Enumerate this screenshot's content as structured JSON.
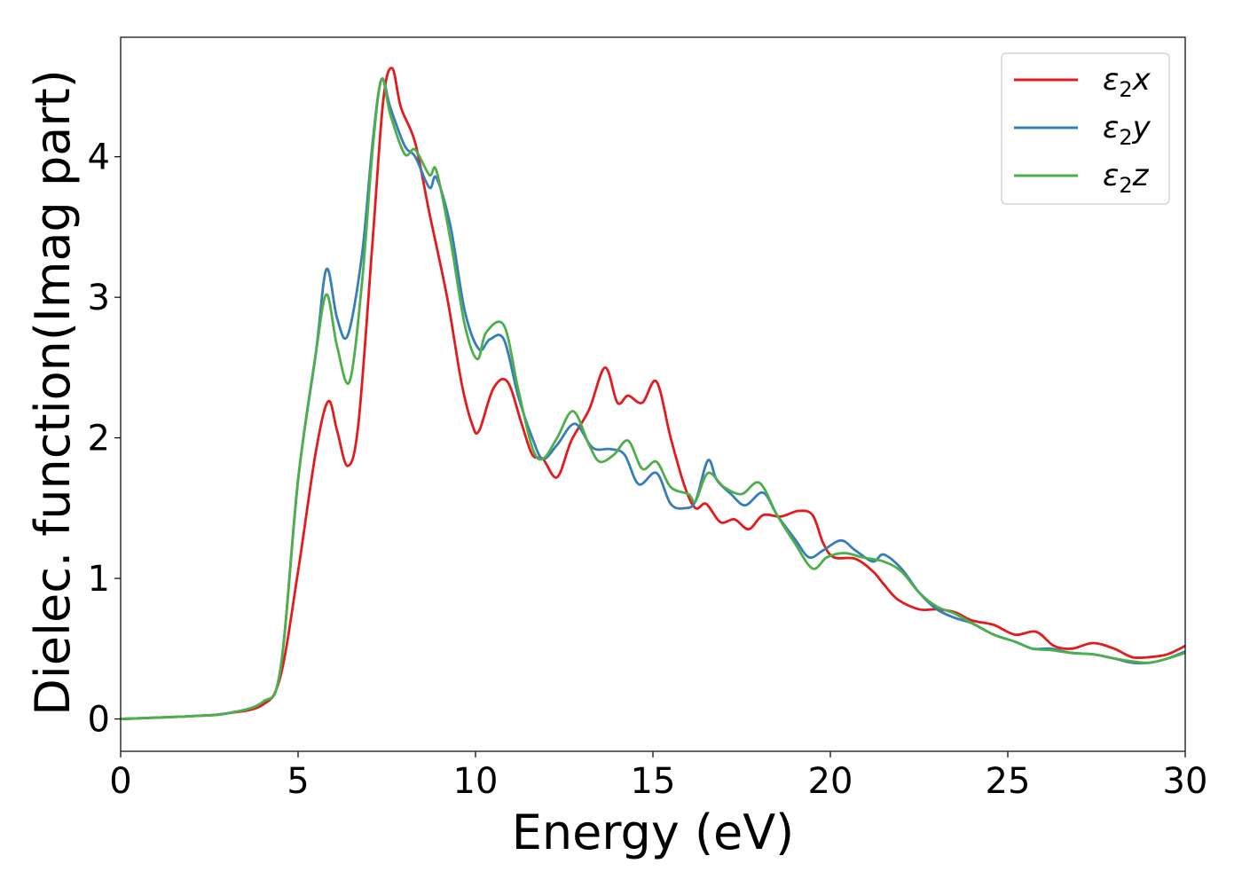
{
  "chart_data": {
    "type": "line",
    "xlabel": "Energy (eV)",
    "ylabel": "Dielec. function(Imag part)",
    "xlim": [
      0,
      30
    ],
    "ylim": [
      -0.23,
      4.85
    ],
    "xticks": [
      0,
      5,
      10,
      15,
      20,
      25,
      30
    ],
    "xtick_labels": [
      "0",
      "5",
      "10",
      "15",
      "20",
      "25",
      "30"
    ],
    "yticks": [
      0,
      1,
      2,
      3,
      4
    ],
    "ytick_labels": [
      "0",
      "1",
      "2",
      "3",
      "4"
    ],
    "grid": false,
    "legend_position": "top-right",
    "series": [
      {
        "name": "ε2x",
        "legend": {
          "symbol": "ε",
          "sub": "2",
          "suffix": "x"
        },
        "color": "#e41a1c",
        "points": [
          [
            0,
            0
          ],
          [
            2,
            0.02
          ],
          [
            3,
            0.04
          ],
          [
            4,
            0.1
          ],
          [
            4.5,
            0.3
          ],
          [
            5,
            1.05
          ],
          [
            5.5,
            1.9
          ],
          [
            5.85,
            2.26
          ],
          [
            6.1,
            2.05
          ],
          [
            6.4,
            1.8
          ],
          [
            6.7,
            2.1
          ],
          [
            7.1,
            3.4
          ],
          [
            7.4,
            4.4
          ],
          [
            7.65,
            4.63
          ],
          [
            7.9,
            4.35
          ],
          [
            8.3,
            4.1
          ],
          [
            8.7,
            3.6
          ],
          [
            9.2,
            3.0
          ],
          [
            9.6,
            2.4
          ],
          [
            9.9,
            2.1
          ],
          [
            10.1,
            2.05
          ],
          [
            10.5,
            2.35
          ],
          [
            10.9,
            2.4
          ],
          [
            11.3,
            2.1
          ],
          [
            11.6,
            1.88
          ],
          [
            11.9,
            1.85
          ],
          [
            12.3,
            1.72
          ],
          [
            12.7,
            1.98
          ],
          [
            13.2,
            2.2
          ],
          [
            13.65,
            2.5
          ],
          [
            14.0,
            2.25
          ],
          [
            14.3,
            2.3
          ],
          [
            14.7,
            2.25
          ],
          [
            15.1,
            2.4
          ],
          [
            15.5,
            2.0
          ],
          [
            15.9,
            1.65
          ],
          [
            16.2,
            1.5
          ],
          [
            16.5,
            1.53
          ],
          [
            16.9,
            1.4
          ],
          [
            17.3,
            1.42
          ],
          [
            17.7,
            1.35
          ],
          [
            18.1,
            1.45
          ],
          [
            18.6,
            1.44
          ],
          [
            19.1,
            1.48
          ],
          [
            19.5,
            1.45
          ],
          [
            19.8,
            1.25
          ],
          [
            20.1,
            1.15
          ],
          [
            20.7,
            1.14
          ],
          [
            21.2,
            1.05
          ],
          [
            21.5,
            0.96
          ],
          [
            21.9,
            0.85
          ],
          [
            22.5,
            0.78
          ],
          [
            23.0,
            0.78
          ],
          [
            23.5,
            0.76
          ],
          [
            24.0,
            0.7
          ],
          [
            24.6,
            0.67
          ],
          [
            25.2,
            0.6
          ],
          [
            25.8,
            0.62
          ],
          [
            26.3,
            0.52
          ],
          [
            26.8,
            0.5
          ],
          [
            27.4,
            0.54
          ],
          [
            28.0,
            0.5
          ],
          [
            28.5,
            0.44
          ],
          [
            29.0,
            0.44
          ],
          [
            29.5,
            0.46
          ],
          [
            30,
            0.52
          ]
        ]
      },
      {
        "name": "ε2y",
        "legend": {
          "symbol": "ε",
          "sub": "2",
          "suffix": "y"
        },
        "color": "#377eb8",
        "points": [
          [
            0,
            0
          ],
          [
            2,
            0.02
          ],
          [
            3,
            0.04
          ],
          [
            4,
            0.12
          ],
          [
            4.5,
            0.35
          ],
          [
            5,
            1.7
          ],
          [
            5.5,
            2.6
          ],
          [
            5.8,
            3.2
          ],
          [
            6.1,
            2.85
          ],
          [
            6.4,
            2.73
          ],
          [
            6.8,
            3.3
          ],
          [
            7.1,
            4.1
          ],
          [
            7.35,
            4.55
          ],
          [
            7.6,
            4.35
          ],
          [
            8.0,
            4.08
          ],
          [
            8.3,
            4.0
          ],
          [
            8.7,
            3.78
          ],
          [
            8.9,
            3.85
          ],
          [
            9.3,
            3.5
          ],
          [
            9.7,
            2.9
          ],
          [
            10.1,
            2.63
          ],
          [
            10.4,
            2.7
          ],
          [
            10.8,
            2.7
          ],
          [
            11.2,
            2.3
          ],
          [
            11.6,
            2.0
          ],
          [
            11.9,
            1.85
          ],
          [
            12.3,
            1.95
          ],
          [
            12.8,
            2.1
          ],
          [
            13.3,
            1.93
          ],
          [
            13.8,
            1.92
          ],
          [
            14.2,
            1.88
          ],
          [
            14.6,
            1.67
          ],
          [
            15.1,
            1.75
          ],
          [
            15.5,
            1.53
          ],
          [
            15.9,
            1.5
          ],
          [
            16.2,
            1.55
          ],
          [
            16.55,
            1.84
          ],
          [
            16.8,
            1.7
          ],
          [
            17.2,
            1.6
          ],
          [
            17.6,
            1.52
          ],
          [
            18.1,
            1.61
          ],
          [
            18.5,
            1.45
          ],
          [
            19.0,
            1.28
          ],
          [
            19.4,
            1.15
          ],
          [
            19.8,
            1.2
          ],
          [
            20.3,
            1.27
          ],
          [
            20.7,
            1.2
          ],
          [
            21.2,
            1.12
          ],
          [
            21.5,
            1.17
          ],
          [
            22.0,
            1.07
          ],
          [
            22.5,
            0.9
          ],
          [
            23.0,
            0.78
          ],
          [
            23.5,
            0.72
          ],
          [
            24.0,
            0.68
          ],
          [
            24.6,
            0.6
          ],
          [
            25.2,
            0.55
          ],
          [
            25.7,
            0.5
          ],
          [
            26.2,
            0.5
          ],
          [
            26.8,
            0.47
          ],
          [
            27.4,
            0.46
          ],
          [
            28.0,
            0.43
          ],
          [
            28.5,
            0.4
          ],
          [
            29.0,
            0.4
          ],
          [
            29.5,
            0.43
          ],
          [
            30,
            0.48
          ]
        ]
      },
      {
        "name": "ε2z",
        "legend": {
          "symbol": "ε",
          "sub": "2",
          "suffix": "z"
        },
        "color": "#4daf4a",
        "points": [
          [
            0,
            0
          ],
          [
            2,
            0.02
          ],
          [
            3,
            0.04
          ],
          [
            4,
            0.12
          ],
          [
            4.5,
            0.35
          ],
          [
            5,
            1.7
          ],
          [
            5.5,
            2.6
          ],
          [
            5.8,
            3.02
          ],
          [
            6.1,
            2.65
          ],
          [
            6.45,
            2.4
          ],
          [
            6.8,
            3.1
          ],
          [
            7.1,
            4.05
          ],
          [
            7.35,
            4.55
          ],
          [
            7.6,
            4.3
          ],
          [
            8.0,
            4.02
          ],
          [
            8.3,
            4.05
          ],
          [
            8.7,
            3.87
          ],
          [
            8.9,
            3.9
          ],
          [
            9.3,
            3.4
          ],
          [
            9.7,
            2.8
          ],
          [
            10.05,
            2.56
          ],
          [
            10.3,
            2.75
          ],
          [
            10.8,
            2.8
          ],
          [
            11.2,
            2.35
          ],
          [
            11.6,
            1.93
          ],
          [
            11.9,
            1.85
          ],
          [
            12.3,
            2.0
          ],
          [
            12.75,
            2.19
          ],
          [
            13.2,
            1.95
          ],
          [
            13.5,
            1.83
          ],
          [
            13.9,
            1.88
          ],
          [
            14.3,
            1.98
          ],
          [
            14.7,
            1.78
          ],
          [
            15.1,
            1.83
          ],
          [
            15.5,
            1.65
          ],
          [
            16.0,
            1.6
          ],
          [
            16.2,
            1.55
          ],
          [
            16.55,
            1.75
          ],
          [
            17.0,
            1.65
          ],
          [
            17.5,
            1.6
          ],
          [
            18.0,
            1.68
          ],
          [
            18.5,
            1.45
          ],
          [
            19.0,
            1.25
          ],
          [
            19.5,
            1.07
          ],
          [
            19.9,
            1.15
          ],
          [
            20.4,
            1.18
          ],
          [
            20.9,
            1.15
          ],
          [
            21.5,
            1.12
          ],
          [
            22.0,
            1.05
          ],
          [
            22.5,
            0.9
          ],
          [
            23.0,
            0.8
          ],
          [
            23.5,
            0.75
          ],
          [
            24.0,
            0.68
          ],
          [
            24.6,
            0.6
          ],
          [
            25.2,
            0.55
          ],
          [
            25.7,
            0.5
          ],
          [
            26.2,
            0.49
          ],
          [
            26.8,
            0.47
          ],
          [
            27.4,
            0.46
          ],
          [
            28.0,
            0.43
          ],
          [
            28.5,
            0.41
          ],
          [
            29.0,
            0.4
          ],
          [
            29.5,
            0.43
          ],
          [
            30,
            0.47
          ]
        ]
      }
    ]
  }
}
